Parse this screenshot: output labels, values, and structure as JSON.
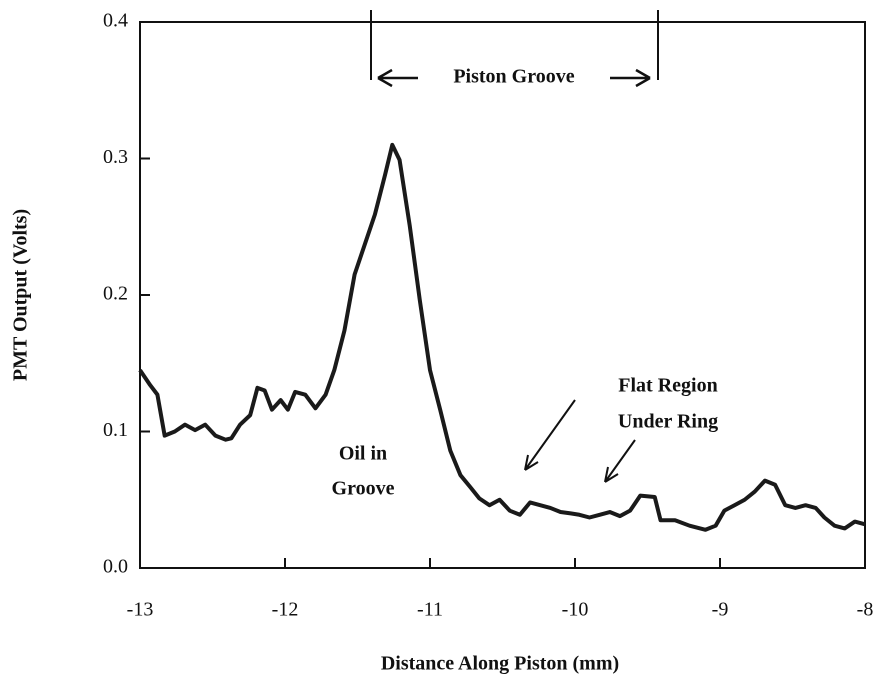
{
  "chart_data": {
    "type": "line",
    "x_label": "Distance Along Piston (mm)",
    "y_label": "PMT Output (Volts)",
    "annotations": [
      "Piston Groove",
      "Oil in",
      "Groove",
      "Flat Region",
      "Under Ring"
    ],
    "xlim": [
      -13,
      -8
    ],
    "xticks": [
      -13,
      -12,
      -11,
      -10,
      -9,
      -8
    ],
    "ylim": [
      0,
      0.4
    ],
    "yticks": [
      {
        "value": 0,
        "label": "0.0"
      },
      0.1,
      0.2,
      0.3,
      0.4
    ],
    "series": [
      {
        "color": "#1a1a1a",
        "x": [
          -13.0,
          -12.93,
          -12.88,
          -12.83,
          -12.76,
          -12.69,
          -12.62,
          -12.55,
          -12.48,
          -12.41,
          -12.37,
          -12.31,
          -12.24,
          -12.19,
          -12.14,
          -12.09,
          -12.03,
          -11.98,
          -11.93,
          -11.86,
          -11.79,
          -11.72,
          -11.66,
          -11.59,
          -11.52,
          -11.45,
          -11.38,
          -11.31,
          -11.26,
          -11.21,
          -11.14,
          -11.07,
          -11.0,
          -10.93,
          -10.86,
          -10.79,
          -10.72,
          -10.66,
          -10.59,
          -10.52,
          -10.45,
          -10.38,
          -10.31,
          -10.24,
          -10.17,
          -10.1,
          -10.03,
          -9.97,
          -9.9,
          -9.83,
          -9.76,
          -9.69,
          -9.62,
          -9.55,
          -9.45,
          -9.41,
          -9.31,
          -9.21,
          -9.1,
          -9.03,
          -8.97,
          -8.9,
          -8.83,
          -8.76,
          -8.69,
          -8.62,
          -8.55,
          -8.48,
          -8.41,
          -8.34,
          -8.28,
          -8.21,
          -8.14,
          -8.07,
          -8.0
        ],
        "values": [
          0.145,
          0.134,
          0.127,
          0.097,
          0.1,
          0.105,
          0.101,
          0.105,
          0.097,
          0.094,
          0.095,
          0.105,
          0.112,
          0.132,
          0.13,
          0.116,
          0.123,
          0.116,
          0.129,
          0.127,
          0.117,
          0.127,
          0.145,
          0.174,
          0.215,
          0.237,
          0.259,
          0.288,
          0.31,
          0.299,
          0.251,
          0.196,
          0.145,
          0.116,
          0.086,
          0.068,
          0.059,
          0.051,
          0.046,
          0.05,
          0.042,
          0.039,
          0.048,
          0.046,
          0.044,
          0.041,
          0.04,
          0.039,
          0.037,
          0.039,
          0.041,
          0.038,
          0.042,
          0.053,
          0.052,
          0.035,
          0.035,
          0.031,
          0.028,
          0.031,
          0.042,
          0.046,
          0.05,
          0.056,
          0.064,
          0.061,
          0.046,
          0.044,
          0.046,
          0.044,
          0.037,
          0.031,
          0.029,
          0.034,
          0.032
        ]
      }
    ]
  }
}
